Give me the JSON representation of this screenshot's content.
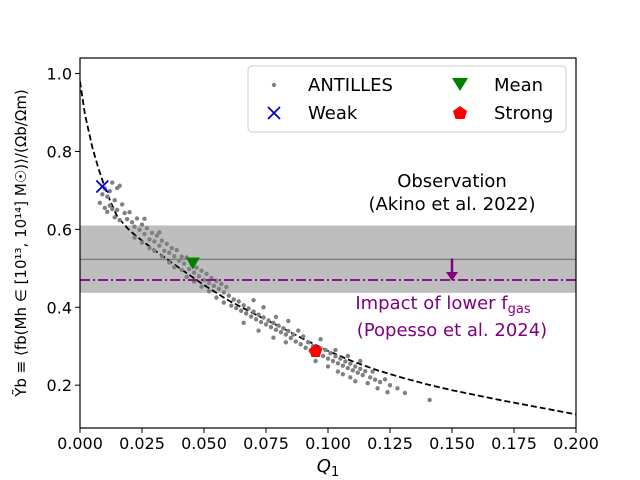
{
  "chart_data": {
    "type": "scatter",
    "x_axis": {
      "label_main": "Q",
      "label_sub": "1",
      "range": [
        0,
        0.2
      ],
      "ticks": [
        0.0,
        0.025,
        0.05,
        0.075,
        0.1,
        0.125,
        0.15,
        0.175,
        0.2
      ],
      "tick_labels": [
        "0.000",
        "0.025",
        "0.050",
        "0.075",
        "0.100",
        "0.125",
        "0.150",
        "0.175",
        "0.200"
      ]
    },
    "y_axis": {
      "label": "Ỹb ≡ ⟨fb(Mh ∈ [10¹³, 10¹⁴] M☉)⟩/(Ωb/Ωm)",
      "range": [
        0.09,
        1.04
      ],
      "ticks": [
        0.2,
        0.4,
        0.6,
        0.8,
        1.0
      ],
      "tick_labels": [
        "0.2",
        "0.4",
        "0.6",
        "0.8",
        "1.0"
      ]
    },
    "observation_band": {
      "center": 0.523,
      "low": 0.437,
      "high": 0.61
    },
    "impact_line": {
      "y": 0.47,
      "arrow_x": 0.15,
      "arrow_from": 0.525,
      "arrow_to": 0.47
    },
    "fit_curve": {
      "x": [
        0.0,
        0.002,
        0.005,
        0.0075,
        0.01,
        0.0125,
        0.015,
        0.02,
        0.025,
        0.03,
        0.04,
        0.05,
        0.06,
        0.07,
        0.08,
        0.09,
        0.1,
        0.11,
        0.12,
        0.13,
        0.14,
        0.15,
        0.16,
        0.17,
        0.18,
        0.19,
        0.2
      ],
      "y": [
        0.98,
        0.895,
        0.81,
        0.755,
        0.708,
        0.668,
        0.633,
        0.597,
        0.571,
        0.547,
        0.501,
        0.457,
        0.417,
        0.384,
        0.352,
        0.319,
        0.288,
        0.261,
        0.238,
        0.219,
        0.202,
        0.187,
        0.174,
        0.161,
        0.149,
        0.137,
        0.125
      ]
    },
    "antilles_points": [
      [
        0.008,
        0.668
      ],
      [
        0.009,
        0.69
      ],
      [
        0.01,
        0.705
      ],
      [
        0.011,
        0.684
      ],
      [
        0.012,
        0.698
      ],
      [
        0.013,
        0.72
      ],
      [
        0.014,
        0.675
      ],
      [
        0.015,
        0.706
      ],
      [
        0.016,
        0.712
      ],
      [
        0.011,
        0.645
      ],
      [
        0.013,
        0.652
      ],
      [
        0.015,
        0.65
      ],
      [
        0.017,
        0.664
      ],
      [
        0.018,
        0.642
      ],
      [
        0.019,
        0.626
      ],
      [
        0.02,
        0.644
      ],
      [
        0.016,
        0.624
      ],
      [
        0.014,
        0.631
      ],
      [
        0.012,
        0.661
      ],
      [
        0.01,
        0.655
      ],
      [
        0.021,
        0.618
      ],
      [
        0.022,
        0.607
      ],
      [
        0.023,
        0.628
      ],
      [
        0.024,
        0.599
      ],
      [
        0.025,
        0.612
      ],
      [
        0.026,
        0.588
      ],
      [
        0.027,
        0.603
      ],
      [
        0.028,
        0.574
      ],
      [
        0.029,
        0.591
      ],
      [
        0.03,
        0.569
      ],
      [
        0.031,
        0.584
      ],
      [
        0.032,
        0.558
      ],
      [
        0.033,
        0.571
      ],
      [
        0.034,
        0.545
      ],
      [
        0.035,
        0.563
      ],
      [
        0.036,
        0.54
      ],
      [
        0.037,
        0.552
      ],
      [
        0.038,
        0.531
      ],
      [
        0.039,
        0.547
      ],
      [
        0.04,
        0.52
      ],
      [
        0.022,
        0.579
      ],
      [
        0.025,
        0.566
      ],
      [
        0.028,
        0.552
      ],
      [
        0.03,
        0.545
      ],
      [
        0.033,
        0.531
      ],
      [
        0.036,
        0.515
      ],
      [
        0.038,
        0.503
      ],
      [
        0.041,
        0.496
      ],
      [
        0.026,
        0.627
      ],
      [
        0.032,
        0.592
      ],
      [
        0.041,
        0.53
      ],
      [
        0.042,
        0.512
      ],
      [
        0.043,
        0.528
      ],
      [
        0.044,
        0.498
      ],
      [
        0.045,
        0.51
      ],
      [
        0.046,
        0.489
      ],
      [
        0.047,
        0.502
      ],
      [
        0.048,
        0.48
      ],
      [
        0.049,
        0.494
      ],
      [
        0.05,
        0.47
      ],
      [
        0.051,
        0.486
      ],
      [
        0.052,
        0.462
      ],
      [
        0.053,
        0.475
      ],
      [
        0.054,
        0.455
      ],
      [
        0.055,
        0.468
      ],
      [
        0.056,
        0.447
      ],
      [
        0.057,
        0.46
      ],
      [
        0.058,
        0.438
      ],
      [
        0.059,
        0.452
      ],
      [
        0.06,
        0.43
      ],
      [
        0.043,
        0.478
      ],
      [
        0.046,
        0.466
      ],
      [
        0.049,
        0.453
      ],
      [
        0.052,
        0.441
      ],
      [
        0.055,
        0.425
      ],
      [
        0.058,
        0.412
      ],
      [
        0.061,
        0.404
      ],
      [
        0.062,
        0.42
      ],
      [
        0.063,
        0.398
      ],
      [
        0.064,
        0.415
      ],
      [
        0.065,
        0.391
      ],
      [
        0.066,
        0.405
      ],
      [
        0.067,
        0.384
      ],
      [
        0.068,
        0.397
      ],
      [
        0.069,
        0.376
      ],
      [
        0.07,
        0.389
      ],
      [
        0.071,
        0.369
      ],
      [
        0.072,
        0.381
      ],
      [
        0.073,
        0.362
      ],
      [
        0.074,
        0.374
      ],
      [
        0.075,
        0.356
      ],
      [
        0.076,
        0.366
      ],
      [
        0.077,
        0.349
      ],
      [
        0.078,
        0.36
      ],
      [
        0.079,
        0.342
      ],
      [
        0.08,
        0.353
      ],
      [
        0.081,
        0.336
      ],
      [
        0.082,
        0.346
      ],
      [
        0.083,
        0.33
      ],
      [
        0.084,
        0.339
      ],
      [
        0.07,
        0.418
      ],
      [
        0.074,
        0.4
      ],
      [
        0.079,
        0.375
      ],
      [
        0.084,
        0.365
      ],
      [
        0.066,
        0.36
      ],
      [
        0.072,
        0.34
      ],
      [
        0.078,
        0.322
      ],
      [
        0.083,
        0.31
      ],
      [
        0.088,
        0.34
      ],
      [
        0.09,
        0.325
      ],
      [
        0.085,
        0.321
      ],
      [
        0.086,
        0.33
      ],
      [
        0.087,
        0.312
      ],
      [
        0.089,
        0.305
      ],
      [
        0.091,
        0.296
      ],
      [
        0.092,
        0.31
      ],
      [
        0.093,
        0.288
      ],
      [
        0.094,
        0.3
      ],
      [
        0.096,
        0.282
      ],
      [
        0.097,
        0.295
      ],
      [
        0.098,
        0.275
      ],
      [
        0.099,
        0.29
      ],
      [
        0.1,
        0.268
      ],
      [
        0.101,
        0.282
      ],
      [
        0.102,
        0.262
      ],
      [
        0.103,
        0.274
      ],
      [
        0.104,
        0.256
      ],
      [
        0.105,
        0.268
      ],
      [
        0.106,
        0.25
      ],
      [
        0.107,
        0.261
      ],
      [
        0.108,
        0.244
      ],
      [
        0.109,
        0.255
      ],
      [
        0.11,
        0.238
      ],
      [
        0.111,
        0.248
      ],
      [
        0.112,
        0.232
      ],
      [
        0.113,
        0.242
      ],
      [
        0.114,
        0.226
      ],
      [
        0.115,
        0.236
      ],
      [
        0.117,
        0.22
      ],
      [
        0.119,
        0.214
      ],
      [
        0.095,
        0.262
      ],
      [
        0.1,
        0.248
      ],
      [
        0.104,
        0.235
      ],
      [
        0.109,
        0.22
      ],
      [
        0.097,
        0.318
      ],
      [
        0.103,
        0.29
      ],
      [
        0.108,
        0.275
      ],
      [
        0.113,
        0.262
      ],
      [
        0.121,
        0.208
      ],
      [
        0.123,
        0.215
      ],
      [
        0.125,
        0.2
      ],
      [
        0.128,
        0.192
      ],
      [
        0.131,
        0.18
      ],
      [
        0.141,
        0.162
      ],
      [
        0.118,
        0.235
      ],
      [
        0.106,
        0.228
      ],
      [
        0.111,
        0.21
      ],
      [
        0.116,
        0.205
      ],
      [
        0.12,
        0.192
      ],
      [
        0.124,
        0.182
      ]
    ],
    "markers": {
      "weak": {
        "x": 0.009,
        "y": 0.71
      },
      "mean": {
        "x": 0.0455,
        "y": 0.515
      },
      "strong": {
        "x": 0.095,
        "y": 0.287
      }
    },
    "legend": {
      "antilles": "ANTILLES",
      "weak": "Weak",
      "mean": "Mean",
      "strong": "Strong"
    },
    "annotations": {
      "observation_line1": "Observation",
      "observation_line2": "(Akino et al. 2022)",
      "impact_line1_prefix": "Impact of lower f",
      "impact_line1_sub": "gas",
      "impact_line2": "(Popesso et al. 2024)"
    },
    "colors": {
      "points": "#808080",
      "band": "#bebebe",
      "band_line": "#808080",
      "impact": "#800080",
      "weak": "#0000cc",
      "mean": "#008000",
      "strong": "#ff0000",
      "curve": "#000000"
    }
  }
}
